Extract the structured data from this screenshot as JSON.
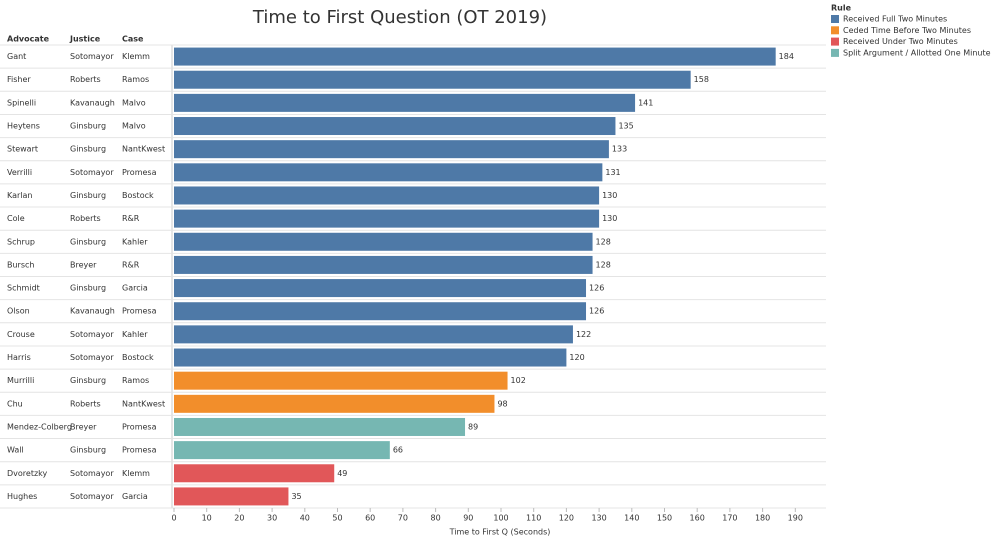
{
  "chart_data": {
    "type": "bar",
    "orientation": "horizontal",
    "title": "Time to First Question (OT 2019)",
    "row_headers": [
      "Advocate",
      "Justice",
      "Case"
    ],
    "categories": [
      "Gant",
      "Fisher",
      "Spinelli",
      "Heytens",
      "Stewart",
      "Verrilli",
      "Karlan",
      "Cole",
      "Schrup",
      "Bursch",
      "Schmidt",
      "Olson",
      "Crouse",
      "Harris",
      "Murrilli",
      "Chu",
      "Mendez-Colberg",
      "Wall",
      "Dvoretzky",
      "Hughes"
    ],
    "justices": [
      "Sotomayor",
      "Roberts",
      "Kavanaugh",
      "Ginsburg",
      "Ginsburg",
      "Sotomayor",
      "Ginsburg",
      "Roberts",
      "Ginsburg",
      "Breyer",
      "Ginsburg",
      "Kavanaugh",
      "Sotomayor",
      "Sotomayor",
      "Ginsburg",
      "Roberts",
      "Breyer",
      "Ginsburg",
      "Sotomayor",
      "Sotomayor"
    ],
    "cases": [
      "Klemm",
      "Ramos",
      "Malvo",
      "Malvo",
      "NantKwest",
      "Promesa",
      "Bostock",
      "R&R",
      "Kahler",
      "R&R",
      "Garcia",
      "Promesa",
      "Kahler",
      "Bostock",
      "Ramos",
      "NantKwest",
      "Promesa",
      "Promesa",
      "Klemm",
      "Garcia"
    ],
    "legend_title": "Rule",
    "series": [
      {
        "name": "Received Full Two Minutes",
        "color": "#4e79a7",
        "values": [
          184,
          158,
          141,
          135,
          133,
          131,
          130,
          130,
          128,
          128,
          126,
          126,
          122,
          120,
          null,
          null,
          null,
          null,
          null,
          null
        ]
      },
      {
        "name": "Ceded Time Before Two Minutes",
        "color": "#f28e2b",
        "values": [
          null,
          null,
          null,
          null,
          null,
          null,
          null,
          null,
          null,
          null,
          null,
          null,
          null,
          null,
          102,
          98,
          null,
          null,
          null,
          null
        ]
      },
      {
        "name": "Received Under Two Minutes",
        "color": "#e15759",
        "values": [
          null,
          null,
          null,
          null,
          null,
          null,
          null,
          null,
          null,
          null,
          null,
          null,
          null,
          null,
          null,
          null,
          null,
          null,
          49,
          35
        ]
      },
      {
        "name": "Split Argument / Allotted One Minute",
        "color": "#76b7b2",
        "values": [
          null,
          null,
          null,
          null,
          null,
          null,
          null,
          null,
          null,
          null,
          null,
          null,
          null,
          null,
          null,
          null,
          89,
          66,
          null,
          null
        ]
      }
    ],
    "x_label": "Time to First Q (Seconds)",
    "xlim": [
      0,
      199
    ],
    "xticks": [
      0,
      10,
      20,
      30,
      40,
      50,
      60,
      70,
      80,
      90,
      100,
      110,
      120,
      130,
      140,
      150,
      160,
      170,
      180,
      190
    ]
  }
}
